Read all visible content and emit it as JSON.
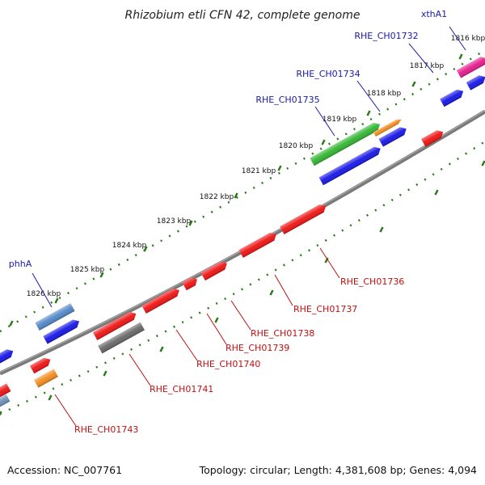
{
  "title": "Rhizobium etli CFN 42, complete genome",
  "footer": {
    "accession": "Accession: NC_007761",
    "summary": "Topology: circular; Length: 4,381,608 bp; Genes: 4,094"
  },
  "colors": {
    "backbone": "#777777",
    "tick": "#2a7a1a",
    "label_blue": "#1a1aa8",
    "label_red": "#c01010"
  },
  "scale_labels": [
    "1816 kbp",
    "1817 kbp",
    "1818 kbp",
    "1819 kbp",
    "1820 kbp",
    "1821 kbp",
    "1822 kbp",
    "1823 kbp",
    "1824 kbp",
    "1825 kbp",
    "1826 kbp"
  ],
  "genes_top": [
    {
      "label": "xthA1",
      "color": "#1a1aa8"
    },
    {
      "label": "RHE_CH01732",
      "color": "#1a1aa8"
    },
    {
      "label": "RHE_CH01734",
      "color": "#1a1aa8"
    },
    {
      "label": "RHE_CH01735",
      "color": "#1a1aa8"
    },
    {
      "label": "phhA",
      "color": "#1a1aa8"
    }
  ],
  "genes_bottom": [
    {
      "label": "RHE_CH01736",
      "color": "#c01010"
    },
    {
      "label": "RHE_CH01737",
      "color": "#c01010"
    },
    {
      "label": "RHE_CH01738",
      "color": "#c01010"
    },
    {
      "label": "RHE_CH01739",
      "color": "#c01010"
    },
    {
      "label": "RHE_CH01740",
      "color": "#c01010"
    },
    {
      "label": "RHE_CH01741",
      "color": "#c01010"
    },
    {
      "label": "RHE_CH01743",
      "color": "#c01010"
    }
  ]
}
